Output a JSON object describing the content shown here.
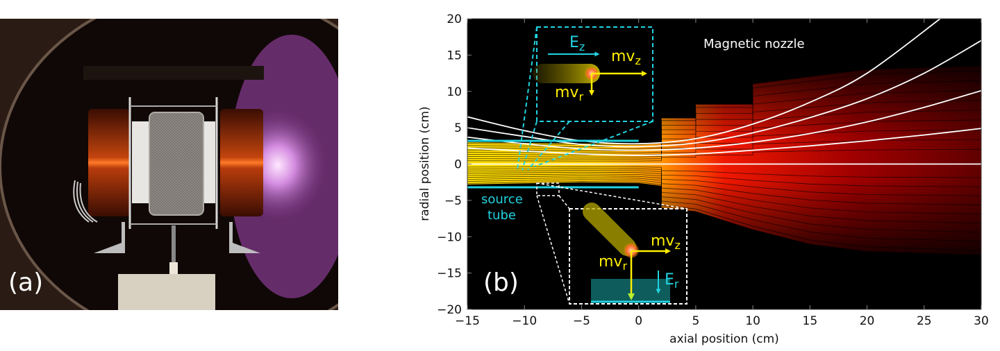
{
  "panel_a": {
    "label": "(a)"
  },
  "panel_b": {
    "label": "(b)"
  },
  "annotations": {
    "magnetic_nozzle": "Magnetic nozzle",
    "source_tube_line1": "source",
    "source_tube_line2": "tube",
    "top_inset": {
      "field": "E",
      "field_sub": "z",
      "axial": "mv",
      "axial_sub": "z",
      "radial": "mv",
      "radial_sub": "r"
    },
    "bottom_inset": {
      "field": "E",
      "field_sub": "r",
      "axial": "mv",
      "axial_sub": "z",
      "radial": "mv",
      "radial_sub": "r"
    }
  },
  "colors": {
    "source_tube": "#22d3e0",
    "arrows": "#ffee00",
    "field_lines": "#ffffff",
    "plasma_core": "#ffd400",
    "plasma_edge": "#c00000"
  },
  "chart_data": {
    "type": "contour",
    "xlabel": "axial position (cm)",
    "ylabel": "radial position (cm)",
    "xlim": [
      -15,
      30
    ],
    "ylim": [
      -20,
      20
    ],
    "xticks": [
      "−15",
      "−10",
      "−5",
      "0",
      "5",
      "10",
      "15",
      "20",
      "25",
      "30"
    ],
    "xtick_values": [
      -15,
      -10,
      -5,
      0,
      5,
      10,
      15,
      20,
      25,
      30
    ],
    "yticks": [
      "20",
      "15",
      "10",
      "5",
      "0",
      "−5",
      "−10",
      "−15",
      "−20"
    ],
    "ytick_values": [
      20,
      15,
      10,
      5,
      0,
      -5,
      -10,
      -15,
      -20
    ],
    "source_tube": {
      "z": [
        -15,
        0
      ],
      "r": [
        3.2,
        -3.2
      ]
    },
    "field_lines": [
      [
        [
          -15,
          6.5
        ],
        [
          -10,
          4.6
        ],
        [
          -5,
          3.2
        ],
        [
          0,
          2.8
        ],
        [
          5,
          3.5
        ],
        [
          10,
          5.5
        ],
        [
          15,
          8.5
        ],
        [
          20,
          12.5
        ],
        [
          26.4,
          20
        ]
      ],
      [
        [
          -15,
          5
        ],
        [
          -10,
          3.8
        ],
        [
          -5,
          2.7
        ],
        [
          0,
          2.4
        ],
        [
          5,
          2.9
        ],
        [
          10,
          4.3
        ],
        [
          15,
          6.4
        ],
        [
          20,
          9
        ],
        [
          25,
          12.5
        ],
        [
          30,
          17
        ]
      ],
      [
        [
          -15,
          3.7
        ],
        [
          -10,
          2.8
        ],
        [
          -5,
          2.1
        ],
        [
          0,
          1.9
        ],
        [
          5,
          2.2
        ],
        [
          10,
          3
        ],
        [
          15,
          4.2
        ],
        [
          20,
          5.8
        ],
        [
          25,
          7.8
        ],
        [
          30,
          10.1
        ]
      ],
      [
        [
          -15,
          2.2
        ],
        [
          -5,
          1.4
        ],
        [
          0,
          1.2
        ],
        [
          5,
          1.4
        ],
        [
          10,
          1.9
        ],
        [
          15,
          2.5
        ],
        [
          20,
          3.2
        ],
        [
          25,
          4
        ],
        [
          30,
          4.9
        ]
      ],
      [
        [
          -15,
          0
        ],
        [
          30,
          0
        ]
      ]
    ],
    "density_boundary_upper": [
      [
        -15,
        3
      ],
      [
        -5,
        2.8
      ],
      [
        0,
        2.8
      ],
      [
        2,
        3
      ],
      [
        2,
        6.3
      ],
      [
        5,
        6.3
      ],
      [
        5,
        8.2
      ],
      [
        10,
        8.2
      ],
      [
        10,
        11
      ],
      [
        15,
        12
      ],
      [
        20,
        13
      ],
      [
        30,
        13.5
      ]
    ],
    "density_boundary_lower": [
      [
        -15,
        -2.8
      ],
      [
        -5,
        -2.5
      ],
      [
        0,
        -2.6
      ],
      [
        2,
        -3
      ],
      [
        2,
        -6
      ],
      [
        5,
        -6.5
      ],
      [
        10,
        -9
      ],
      [
        15,
        -11
      ],
      [
        20,
        -12
      ],
      [
        30,
        -12.5
      ]
    ]
  }
}
